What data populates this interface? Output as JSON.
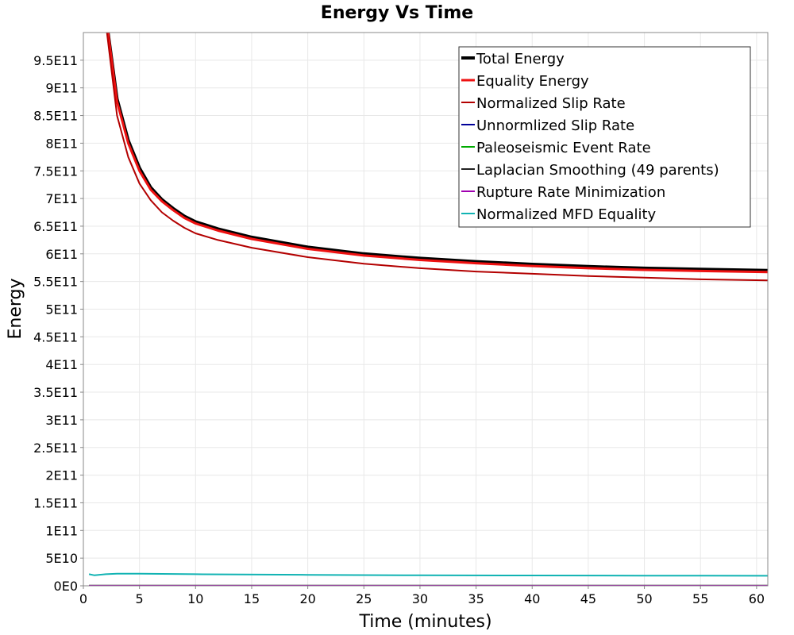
{
  "chart_data": {
    "type": "line",
    "title": "Energy Vs Time",
    "xlabel": "Time (minutes)",
    "ylabel": "Energy",
    "xlim": [
      0,
      61
    ],
    "ylim": [
      0,
      1000000000000
    ],
    "x_ticks": [
      0,
      5,
      10,
      15,
      20,
      25,
      30,
      35,
      40,
      45,
      50,
      55,
      60
    ],
    "x_tick_labels": [
      "0",
      "5",
      "10",
      "15",
      "20",
      "25",
      "30",
      "35",
      "40",
      "45",
      "50",
      "55",
      "60"
    ],
    "y_ticks": [
      0,
      50000000000,
      100000000000,
      150000000000,
      200000000000,
      250000000000,
      300000000000,
      350000000000,
      400000000000,
      450000000000,
      500000000000,
      550000000000,
      600000000000,
      650000000000,
      700000000000,
      750000000000,
      800000000000,
      850000000000,
      900000000000,
      950000000000
    ],
    "y_tick_labels": [
      "0E0",
      "5E10",
      "1E11",
      "1.5E11",
      "2E11",
      "2.5E11",
      "3E11",
      "3.5E11",
      "4E11",
      "4.5E11",
      "5E11",
      "5.5E11",
      "6E11",
      "6.5E11",
      "7E11",
      "7.5E11",
      "8E11",
      "8.5E11",
      "9E11",
      "9.5E11"
    ],
    "grid": true,
    "legend_position": "top-right",
    "series": [
      {
        "name": "Total Energy",
        "color": "#000000",
        "width": 4,
        "x": [
          2.2,
          3,
          4,
          5,
          6,
          7,
          8,
          9,
          10,
          12,
          15,
          20,
          25,
          30,
          35,
          40,
          45,
          50,
          55,
          61
        ],
        "y": [
          1000000000000,
          880000000000,
          805000000000,
          755000000000,
          720000000000,
          698000000000,
          682000000000,
          668000000000,
          658000000000,
          645000000000,
          630000000000,
          612000000000,
          600000000000,
          592000000000,
          586000000000,
          581000000000,
          577000000000,
          574000000000,
          572000000000,
          570000000000
        ]
      },
      {
        "name": "Equality Energy",
        "color": "#ee1111",
        "width": 3,
        "x": [
          2.2,
          3,
          4,
          5,
          6,
          7,
          8,
          9,
          10,
          12,
          15,
          20,
          25,
          30,
          35,
          40,
          45,
          50,
          55,
          61
        ],
        "y": [
          1000000000000,
          875000000000,
          800000000000,
          750000000000,
          716000000000,
          695000000000,
          679000000000,
          665000000000,
          655000000000,
          642000000000,
          627000000000,
          609000000000,
          597000000000,
          589000000000,
          583000000000,
          578000000000,
          574000000000,
          571000000000,
          569000000000,
          567000000000
        ]
      },
      {
        "name": "Normalized Slip Rate",
        "color": "#b30000",
        "width": 2,
        "x": [
          2.1,
          3,
          4,
          5,
          6,
          7,
          8,
          9,
          10,
          12,
          15,
          20,
          25,
          30,
          35,
          40,
          45,
          50,
          55,
          61
        ],
        "y": [
          1000000000000,
          850000000000,
          775000000000,
          727000000000,
          697000000000,
          675000000000,
          660000000000,
          647000000000,
          637000000000,
          625000000000,
          611000000000,
          594000000000,
          582000000000,
          574000000000,
          568000000000,
          564000000000,
          560000000000,
          557000000000,
          554000000000,
          552000000000
        ]
      },
      {
        "name": "Unnormlized Slip Rate",
        "color": "#000099",
        "width": 2,
        "x": [
          0.5,
          61
        ],
        "y": [
          0,
          0
        ]
      },
      {
        "name": "Paleoseismic Event Rate",
        "color": "#00aa00",
        "width": 2,
        "x": [
          0.5,
          61
        ],
        "y": [
          0,
          0
        ]
      },
      {
        "name": "Laplacian Smoothing (49 parents)",
        "color": "#222222",
        "width": 2,
        "x": [
          0.5,
          61
        ],
        "y": [
          500000000,
          500000000
        ]
      },
      {
        "name": "Rupture Rate Minimization",
        "color": "#a000b0",
        "width": 2,
        "x": [
          0.5,
          61
        ],
        "y": [
          0,
          0
        ]
      },
      {
        "name": "Normalized MFD Equality",
        "color": "#11b3b3",
        "width": 2,
        "x": [
          0.5,
          1,
          2,
          3,
          5,
          10,
          20,
          30,
          40,
          50,
          61
        ],
        "y": [
          21000000000,
          19000000000,
          21000000000,
          22000000000,
          21800000000,
          21000000000,
          19800000000,
          19000000000,
          18600000000,
          18300000000,
          18100000000
        ]
      }
    ]
  }
}
